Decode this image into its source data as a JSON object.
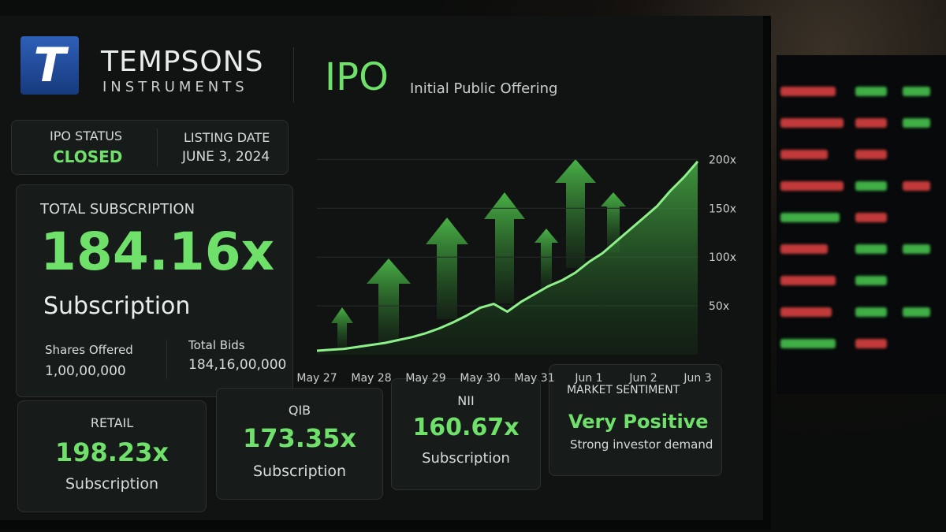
{
  "brand": {
    "logo_letter": "T",
    "name": "TEMPSONS",
    "tagline": "INSTRUMENTS"
  },
  "header": {
    "title": "IPO",
    "subtitle": "Initial Public Offering"
  },
  "status": {
    "ipo_status_label": "IPO STATUS",
    "ipo_status": "CLOSED",
    "listing_date_label": "LISTING DATE",
    "listing_date": "JUNE 3, 2024"
  },
  "total": {
    "label": "TOTAL SUBSCRIPTION",
    "value": "184.16x",
    "caption": "Subscription",
    "shares_offered_label": "Shares Offered",
    "shares_offered": "1,00,00,000",
    "total_bids_label": "Total Bids",
    "total_bids": "184,16,00,000"
  },
  "segments": [
    {
      "label": "RETAIL",
      "value": "198.23x",
      "caption": "Subscription"
    },
    {
      "label": "QIB",
      "value": "173.35x",
      "caption": "Subscription"
    },
    {
      "label": "NII",
      "value": "160.67x",
      "caption": "Subscription"
    }
  ],
  "sentiment": {
    "label": "MARKET SENTIMENT",
    "value": "Very Positive",
    "caption": "Strong investor demand"
  },
  "chart_data": {
    "type": "line",
    "categories": [
      "May 27",
      null,
      null,
      null,
      "May 28",
      null,
      null,
      null,
      "May 29",
      null,
      null,
      null,
      "May 30",
      null,
      null,
      null,
      "May 31",
      null,
      null,
      null,
      "Jun 1",
      null,
      null,
      null,
      "Jun 2",
      null,
      null,
      null,
      "Jun 3"
    ],
    "values": [
      4,
      5,
      6,
      8,
      10,
      12,
      15,
      18,
      22,
      27,
      33,
      40,
      48,
      52,
      44,
      54,
      62,
      70,
      76,
      84,
      95,
      104,
      116,
      128,
      140,
      152,
      168,
      182,
      198
    ],
    "color": "#8ef08a",
    "area": true,
    "ylim": [
      0,
      210
    ],
    "yticks": [
      {
        "value": 50,
        "label": "50x"
      },
      {
        "value": 100,
        "label": "100x"
      },
      {
        "value": 150,
        "label": "150x"
      },
      {
        "value": 200,
        "label": "200x"
      }
    ],
    "grid": true
  }
}
